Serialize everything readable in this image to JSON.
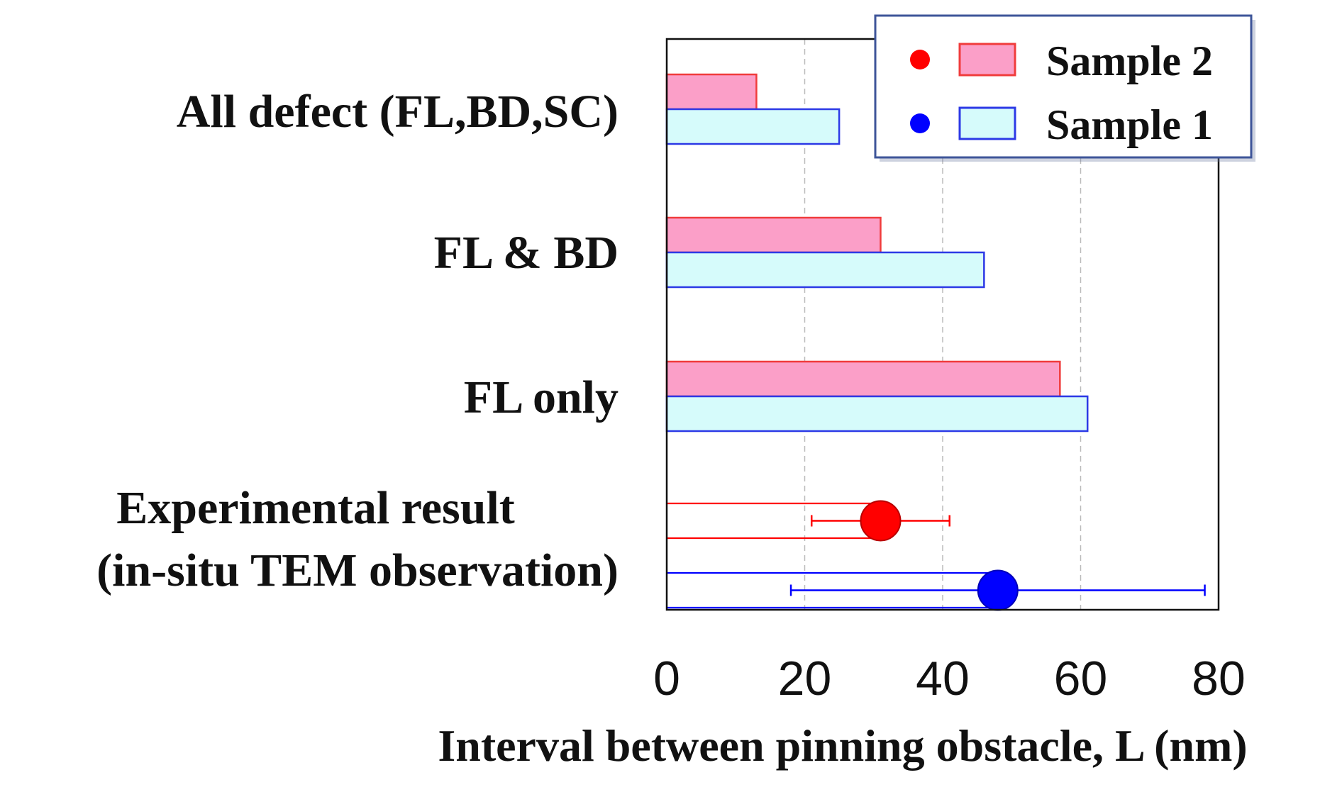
{
  "chart_data": {
    "type": "bar",
    "orientation": "horizontal",
    "categories": [
      [
        "All defect (FL,BD,SC)"
      ],
      [
        "FL & BD"
      ],
      [
        "FL only"
      ],
      [
        "Experimental result",
        "(in-situ TEM observation)"
      ]
    ],
    "series": [
      {
        "name": "Sample 2",
        "color": "#f03c3c",
        "fill": "#fb9fc8",
        "values": [
          13,
          31,
          57,
          null
        ]
      },
      {
        "name": "Sample 1",
        "color": "#2c39e6",
        "fill": "#d6fbfb",
        "values": [
          25,
          46,
          61,
          null
        ]
      }
    ],
    "experimental": {
      "category_index": 3,
      "points": [
        {
          "series": "Sample 2",
          "color": "#ff0000",
          "stroke": "#b80000",
          "value": 31,
          "error_low": 21,
          "error_high": 41,
          "bracket_start": 0,
          "bracket_end": 31
        },
        {
          "series": "Sample 1",
          "color": "#0000ff",
          "stroke": "#0000b8",
          "value": 48,
          "error_low": 18,
          "error_high": 78,
          "bracket_start": 0,
          "bracket_end": 48
        }
      ]
    },
    "xlabel": "Interval between pinning obstacle, L (nm)",
    "ylabel": "",
    "xlim": [
      0,
      80
    ],
    "xticks": [
      0,
      20,
      40,
      60,
      80
    ],
    "xtick_labels": [
      "0",
      "20",
      "40",
      "60",
      "80"
    ],
    "grid": "vertical dashed",
    "legend_position": "top-right",
    "legend": [
      {
        "label": "Sample 2",
        "marker_color": "#ff0000",
        "swatch_fill": "#fb9fc8",
        "swatch_stroke": "#f03c3c"
      },
      {
        "label": "Sample 1",
        "marker_color": "#0000ff",
        "swatch_fill": "#d6fbfb",
        "swatch_stroke": "#2c39e6"
      }
    ]
  }
}
